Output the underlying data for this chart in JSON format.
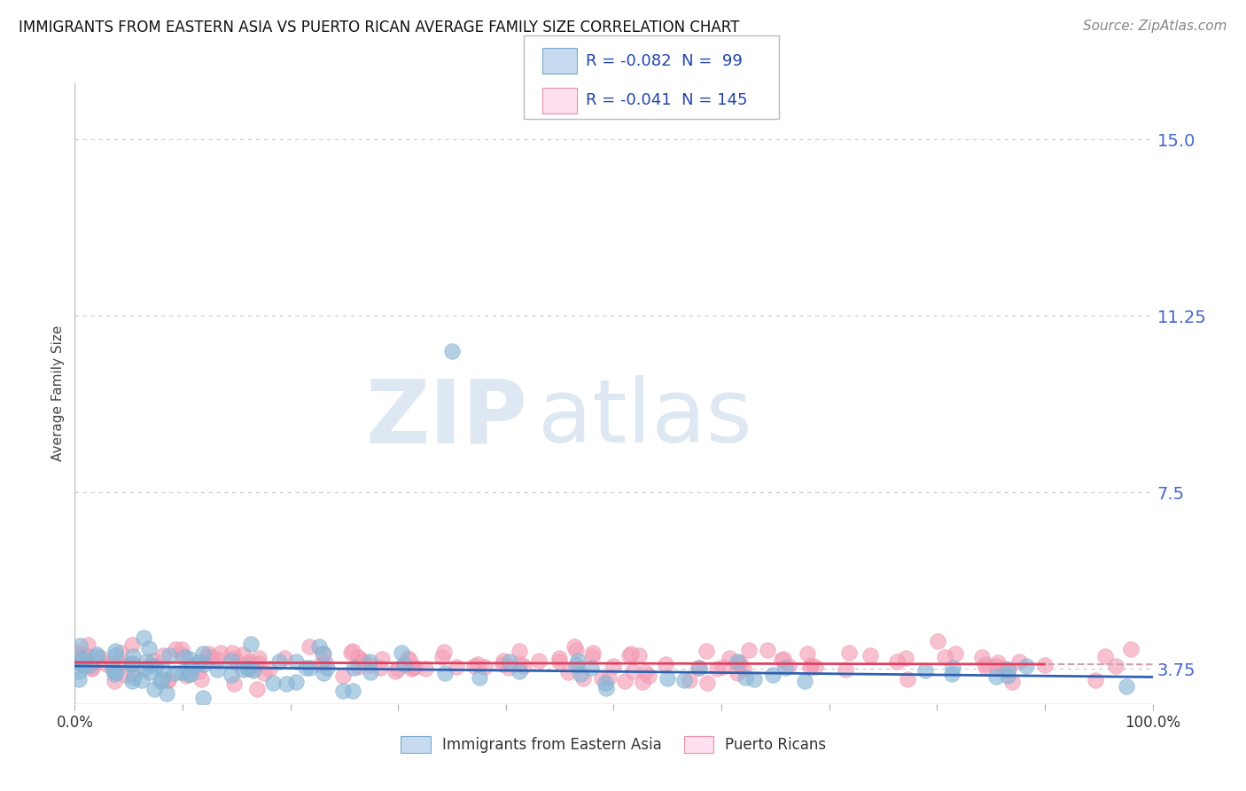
{
  "title": "IMMIGRANTS FROM EASTERN ASIA VS PUERTO RICAN AVERAGE FAMILY SIZE CORRELATION CHART",
  "source": "Source: ZipAtlas.com",
  "ylabel": "Average Family Size",
  "xlim": [
    0,
    1
  ],
  "ylim": [
    3.0,
    16.2
  ],
  "yticks": [
    3.75,
    7.5,
    11.25,
    15.0
  ],
  "legend_r1": "R = -0.082",
  "legend_n1": "N =  99",
  "legend_r2": "R = -0.041",
  "legend_n2": "N = 145",
  "blue_marker": "#8ab8d8",
  "blue_edge": "#7aaac8",
  "pink_marker": "#f4a0b8",
  "pink_edge": "#e890a8",
  "blue_light": "#c6dbef",
  "pink_light": "#fde0ef",
  "trend_blue": "#3060b0",
  "trend_pink": "#e04060",
  "trend_pink_dash": "#c8a0b0",
  "watermark_zip": "#dde4ee",
  "watermark_atlas": "#dde4ee",
  "background": "#ffffff",
  "grid_color": "#c8c8c8",
  "title_color": "#111111",
  "tick_color": "#4466cc",
  "source_color": "#888888",
  "seed": 7,
  "n_blue": 99,
  "n_pink": 145,
  "r_blue": -0.082,
  "r_pink": -0.041
}
